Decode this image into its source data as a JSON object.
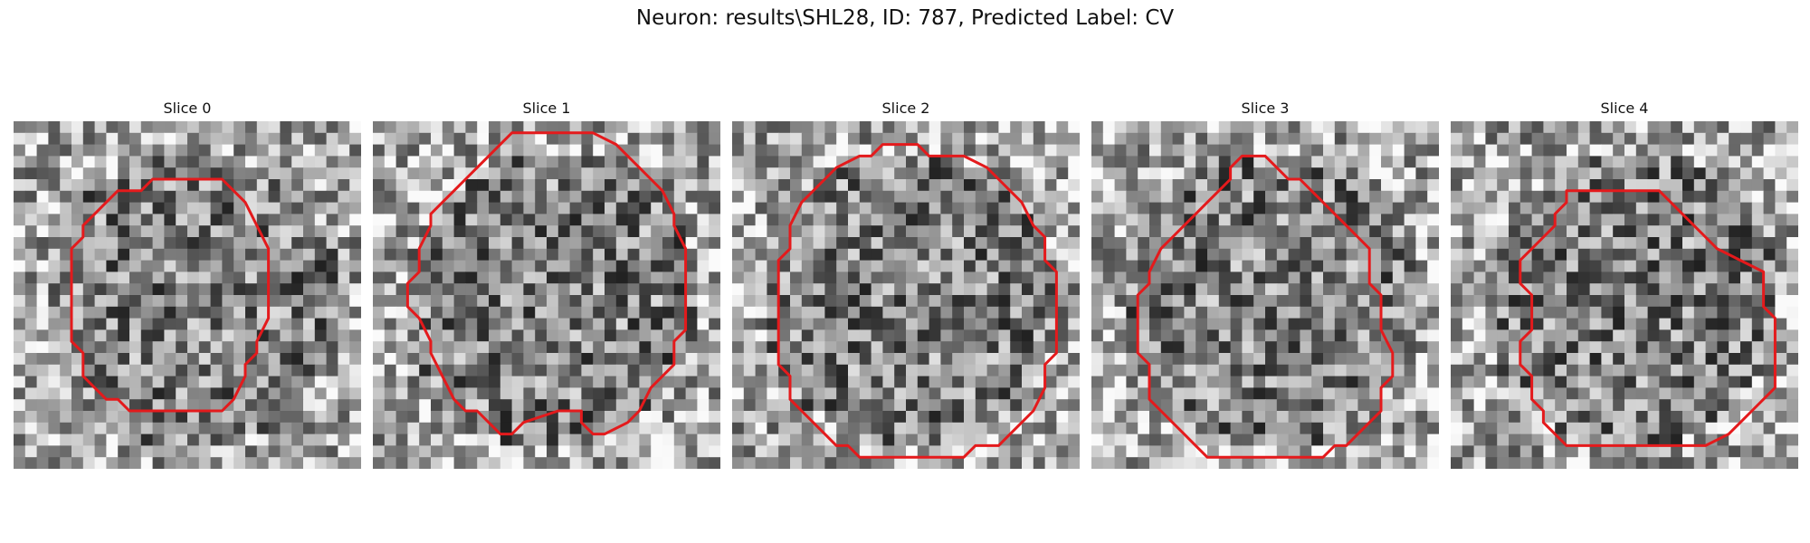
{
  "figure": {
    "title": "Neuron: results\\SHL28, ID: 787, Predicted Label: CV",
    "contour_color": "#e41a1c",
    "grid_size": 30
  },
  "slices": [
    {
      "title": "Slice 0",
      "seed": 11,
      "dark_spots": 6
    },
    {
      "title": "Slice 1",
      "seed": 23,
      "dark_spots": 4
    },
    {
      "title": "Slice 2",
      "seed": 37,
      "dark_spots": 5
    },
    {
      "title": "Slice 3",
      "seed": 51,
      "dark_spots": 8
    },
    {
      "title": "Slice 4",
      "seed": 67,
      "dark_spots": 9
    }
  ]
}
